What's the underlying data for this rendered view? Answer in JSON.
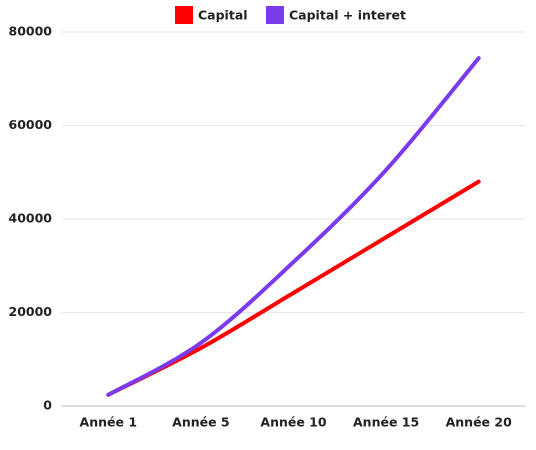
{
  "chart_data": {
    "type": "line",
    "categories": [
      "Année 1",
      "Année 5",
      "Année 10",
      "Année 15",
      "Année 20"
    ],
    "series": [
      {
        "name": "Capital",
        "color": "#ff0000",
        "values": [
          2400,
          12400,
          24200,
          36100,
          48000
        ]
      },
      {
        "name": "Capital + interet",
        "color": "#7c3aed",
        "values": [
          2400,
          13500,
          30800,
          50500,
          74400
        ]
      }
    ],
    "ylim": [
      0,
      80000
    ],
    "yticks": [
      0,
      20000,
      40000,
      60000,
      80000
    ],
    "grid": true,
    "legend": "top"
  }
}
